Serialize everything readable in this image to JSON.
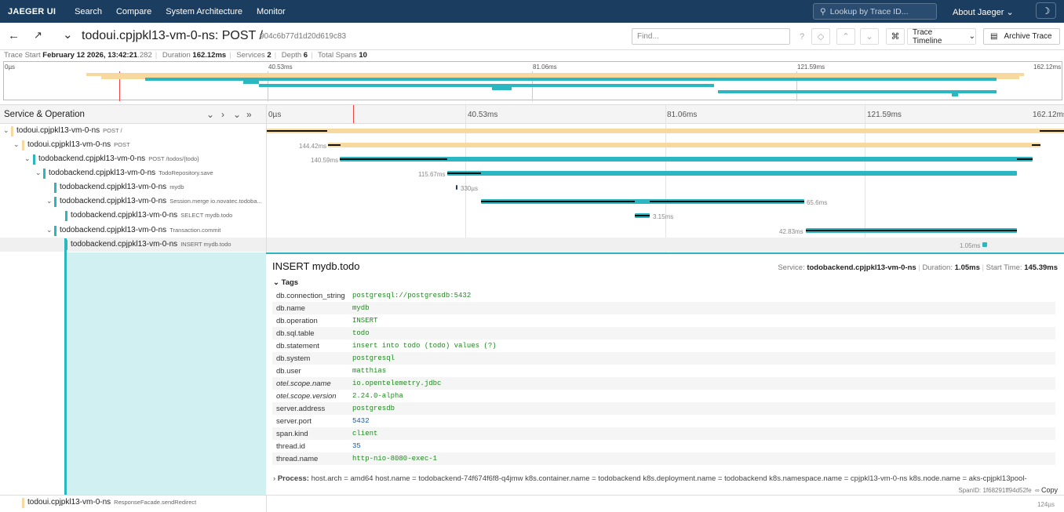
{
  "nav": {
    "brand": "JAEGER UI",
    "search": "Search",
    "compare": "Compare",
    "arch": "System Architecture",
    "monitor": "Monitor",
    "lookup_placeholder": "Lookup by Trace ID...",
    "about": "About Jaeger"
  },
  "header": {
    "title": "todoui.cpjpkl13-vm-0-ns: POST /",
    "trace_id": "904c6b77d1d20d619c83",
    "find_placeholder": "Find...",
    "timeline_label": "Trace Timeline",
    "archive_label": "Archive Trace"
  },
  "meta": {
    "start_label": "Trace Start",
    "start_value": "February 12 2026, 13:42:21",
    "start_ms": ".282",
    "duration_label": "Duration",
    "duration_value": "162.12ms",
    "services_label": "Services",
    "services_value": "2",
    "depth_label": "Depth",
    "depth_value": "6",
    "spans_label": "Total Spans",
    "spans_value": "10"
  },
  "ticks": [
    "0µs",
    "40.53ms",
    "81.06ms",
    "121.59ms",
    "162.12ms"
  ],
  "panel": {
    "service_operation": "Service & Operation"
  },
  "spans": [
    {
      "service": "todoui.cpjpkl13-vm-0-ns",
      "op": "POST /",
      "dur": ""
    },
    {
      "service": "todoui.cpjpkl13-vm-0-ns",
      "op": "POST",
      "dur": "144.42ms"
    },
    {
      "service": "todobackend.cpjpkl13-vm-0-ns",
      "op": "POST /todos/{todo}",
      "dur": "140.59ms"
    },
    {
      "service": "todobackend.cpjpkl13-vm-0-ns",
      "op": "TodoRepository.save",
      "dur": "115.67ms"
    },
    {
      "service": "todobackend.cpjpkl13-vm-0-ns",
      "op": "mydb",
      "dur": "330µs"
    },
    {
      "service": "todobackend.cpjpkl13-vm-0-ns",
      "op": "Session.merge io.novatec.todoba...",
      "dur": "65.6ms"
    },
    {
      "service": "todobackend.cpjpkl13-vm-0-ns",
      "op": "SELECT mydb.todo",
      "dur": "3.15ms"
    },
    {
      "service": "todobackend.cpjpkl13-vm-0-ns",
      "op": "Transaction.commit",
      "dur": "42.83ms"
    },
    {
      "service": "todobackend.cpjpkl13-vm-0-ns",
      "op": "INSERT mydb.todo",
      "dur": "1.05ms"
    }
  ],
  "detail": {
    "title": "INSERT mydb.todo",
    "service_label": "Service:",
    "service": "todobackend.cpjpkl13-vm-0-ns",
    "duration_label": "Duration:",
    "duration": "1.05ms",
    "start_label": "Start Time:",
    "start": "145.39ms",
    "tags_label": "Tags",
    "tags": [
      {
        "k": "db.connection_string",
        "v": "postgresql://postgresdb:5432"
      },
      {
        "k": "db.name",
        "v": "mydb"
      },
      {
        "k": "db.operation",
        "v": "INSERT"
      },
      {
        "k": "db.sql.table",
        "v": "todo"
      },
      {
        "k": "db.statement",
        "v": "insert into todo (todo) values (?)"
      },
      {
        "k": "db.system",
        "v": "postgresql"
      },
      {
        "k": "db.user",
        "v": "matthias"
      },
      {
        "k": "otel.scope.name",
        "v": "io.opentelemetry.jdbc"
      },
      {
        "k": "otel.scope.version",
        "v": "2.24.0-alpha"
      },
      {
        "k": "server.address",
        "v": "postgresdb"
      },
      {
        "k": "server.port",
        "v": "5432"
      },
      {
        "k": "span.kind",
        "v": "client"
      },
      {
        "k": "thread.id",
        "v": "35"
      },
      {
        "k": "thread.name",
        "v": "http-nio-8080-exec-1"
      }
    ],
    "process_label": "Process:",
    "process": "host.arch = amd64   host.name = todobackend-74f674f6f8-q4jmw   k8s.container.name = todobackend   k8s.deployment.name = todobackend   k8s.namespace.name = cpjpkl13-vm-0-ns   k8s.node.name = aks-cpjpkl13pool-",
    "span_id": "SpanID: 1f68291ff94d52fe",
    "copy": "Copy"
  },
  "last_row": {
    "service": "todoui.cpjpkl13-vm-0-ns",
    "op": "ResponseFacade.sendRedirect",
    "dur": "124µs"
  },
  "colors": {
    "nav": "#1b3d5f",
    "todoui": "#f7d9a0",
    "todobackend": "#2bb7c1"
  }
}
